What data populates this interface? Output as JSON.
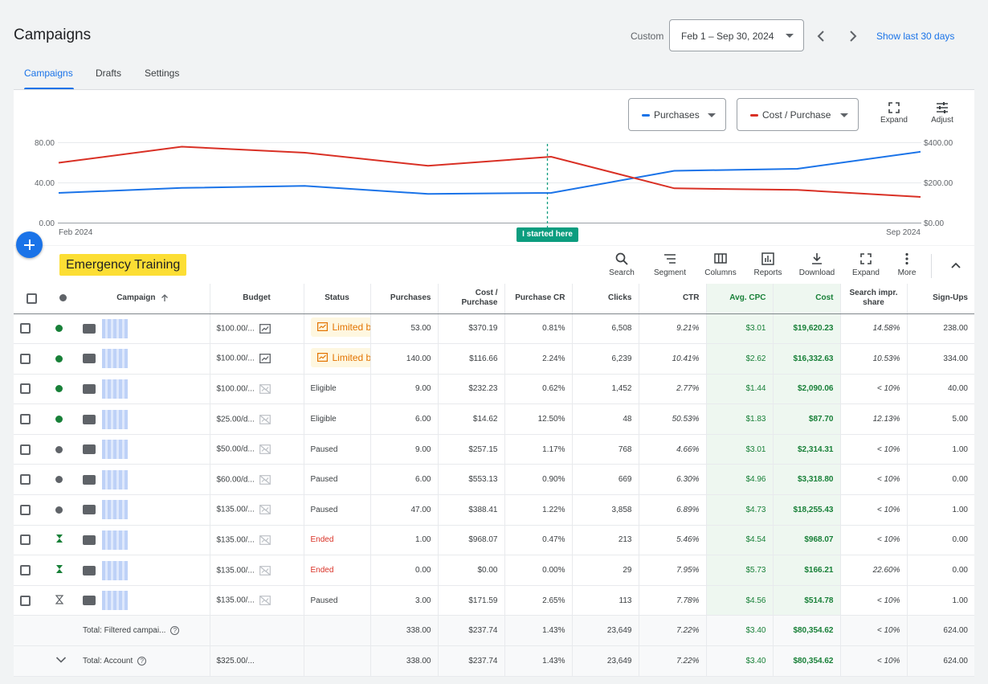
{
  "header": {
    "title": "Campaigns",
    "custom_label": "Custom",
    "date_range": "Feb 1 – Sep 30, 2024",
    "show_last": "Show last 30 days"
  },
  "tabs": [
    "Campaigns",
    "Drafts",
    "Settings"
  ],
  "chart_controls": {
    "metric1": "Purchases",
    "metric1_color": "#1a73e8",
    "metric2": "Cost / Purchase",
    "metric2_color": "#d93025",
    "expand": "Expand",
    "adjust": "Adjust"
  },
  "chart_data": {
    "type": "line",
    "x_start": "Feb 2024",
    "x_end": "Sep 2024",
    "left_ticks": [
      "80.00",
      "40.00",
      "0.00"
    ],
    "right_ticks": [
      "$400.00",
      "$200.00",
      "$0.00"
    ],
    "left_ylim": [
      0,
      80
    ],
    "right_ylim": [
      0,
      400
    ],
    "annotation": "I started here",
    "annotation_index": 7,
    "series": [
      {
        "axis": "left",
        "color": "#1a73e8",
        "values": [
          30,
          35,
          37,
          29,
          30,
          52,
          54,
          71
        ]
      },
      {
        "axis": "right",
        "color": "#d93025",
        "values": [
          300,
          380,
          350,
          285,
          330,
          173,
          165,
          130
        ]
      }
    ],
    "x_positions": [
      0,
      1,
      2,
      3,
      4,
      5,
      6,
      7
    ]
  },
  "toolbar": {
    "label": "Emergency Training",
    "items": [
      "Search",
      "Segment",
      "Columns",
      "Reports",
      "Download",
      "Expand",
      "More"
    ]
  },
  "table": {
    "columns": [
      "Campaign",
      "Budget",
      "Status",
      "Purchases",
      "Cost / Purchase",
      "Purchase CR",
      "Clicks",
      "CTR",
      "Avg. CPC",
      "Cost",
      "Search impr. share",
      "Sign-Ups"
    ],
    "rows": [
      {
        "status_dot": "green",
        "budget": "$100.00/...",
        "status": "Limited by",
        "status_type": "limited",
        "purchases": "53.00",
        "cost_purchase": "$370.19",
        "purchase_cr": "0.81%",
        "clicks": "6,508",
        "ctr": "9.21%",
        "avg_cpc": "$3.01",
        "cost": "$19,620.23",
        "impr_share": "14.58%",
        "signups": "238.00"
      },
      {
        "status_dot": "green",
        "budget": "$100.00/...",
        "status": "Limited by",
        "status_type": "limited",
        "purchases": "140.00",
        "cost_purchase": "$116.66",
        "purchase_cr": "2.24%",
        "clicks": "6,239",
        "ctr": "10.41%",
        "avg_cpc": "$2.62",
        "cost": "$16,332.63",
        "impr_share": "10.53%",
        "signups": "334.00"
      },
      {
        "status_dot": "green",
        "budget": "$100.00/...",
        "status": "Eligible",
        "status_type": "normal",
        "purchases": "9.00",
        "cost_purchase": "$232.23",
        "purchase_cr": "0.62%",
        "clicks": "1,452",
        "ctr": "2.77%",
        "avg_cpc": "$1.44",
        "cost": "$2,090.06",
        "impr_share": "< 10%",
        "signups": "40.00"
      },
      {
        "status_dot": "green",
        "budget": "$25.00/d...",
        "status": "Eligible",
        "status_type": "normal",
        "purchases": "6.00",
        "cost_purchase": "$14.62",
        "purchase_cr": "12.50%",
        "clicks": "48",
        "ctr": "50.53%",
        "avg_cpc": "$1.83",
        "cost": "$87.70",
        "impr_share": "12.13%",
        "signups": "5.00"
      },
      {
        "status_dot": "gray",
        "budget": "$50.00/d...",
        "status": "Paused",
        "status_type": "normal",
        "purchases": "9.00",
        "cost_purchase": "$257.15",
        "purchase_cr": "1.17%",
        "clicks": "768",
        "ctr": "4.66%",
        "avg_cpc": "$3.01",
        "cost": "$2,314.31",
        "impr_share": "< 10%",
        "signups": "1.00"
      },
      {
        "status_dot": "gray",
        "budget": "$60.00/d...",
        "status": "Paused",
        "status_type": "normal",
        "purchases": "6.00",
        "cost_purchase": "$553.13",
        "purchase_cr": "0.90%",
        "clicks": "669",
        "ctr": "6.30%",
        "avg_cpc": "$4.96",
        "cost": "$3,318.80",
        "impr_share": "< 10%",
        "signups": "0.00"
      },
      {
        "status_dot": "gray",
        "budget": "$135.00/...",
        "status": "Paused",
        "status_type": "normal",
        "purchases": "47.00",
        "cost_purchase": "$388.41",
        "purchase_cr": "1.22%",
        "clicks": "3,858",
        "ctr": "6.89%",
        "avg_cpc": "$4.73",
        "cost": "$18,255.43",
        "impr_share": "< 10%",
        "signups": "1.00"
      },
      {
        "status_dot": "ended",
        "budget": "$135.00/...",
        "status": "Ended",
        "status_type": "ended",
        "purchases": "1.00",
        "cost_purchase": "$968.07",
        "purchase_cr": "0.47%",
        "clicks": "213",
        "ctr": "5.46%",
        "avg_cpc": "$4.54",
        "cost": "$968.07",
        "impr_share": "< 10%",
        "signups": "0.00"
      },
      {
        "status_dot": "ended",
        "budget": "$135.00/...",
        "status": "Ended",
        "status_type": "ended",
        "purchases": "0.00",
        "cost_purchase": "$0.00",
        "purchase_cr": "0.00%",
        "clicks": "29",
        "ctr": "7.95%",
        "avg_cpc": "$5.73",
        "cost": "$166.21",
        "impr_share": "22.60%",
        "signups": "0.00"
      },
      {
        "status_dot": "ended-gray",
        "budget": "$135.00/...",
        "status": "Paused",
        "status_type": "normal",
        "purchases": "3.00",
        "cost_purchase": "$171.59",
        "purchase_cr": "2.65%",
        "clicks": "113",
        "ctr": "7.78%",
        "avg_cpc": "$4.56",
        "cost": "$514.78",
        "impr_share": "< 10%",
        "signups": "1.00"
      }
    ],
    "totals": [
      {
        "label": "Total: Filtered campai...",
        "budget": "",
        "purchases": "338.00",
        "cost_purchase": "$237.74",
        "purchase_cr": "1.43%",
        "clicks": "23,649",
        "ctr": "7.22%",
        "avg_cpc": "$3.40",
        "cost": "$80,354.62",
        "impr_share": "< 10%",
        "signups": "624.00"
      },
      {
        "label": "Total: Account",
        "budget": "$325.00/...",
        "purchases": "338.00",
        "cost_purchase": "$237.74",
        "purchase_cr": "1.43%",
        "clicks": "23,649",
        "ctr": "7.22%",
        "avg_cpc": "$3.40",
        "cost": "$80,354.62",
        "impr_share": "< 10%",
        "signups": "624.00"
      }
    ]
  }
}
